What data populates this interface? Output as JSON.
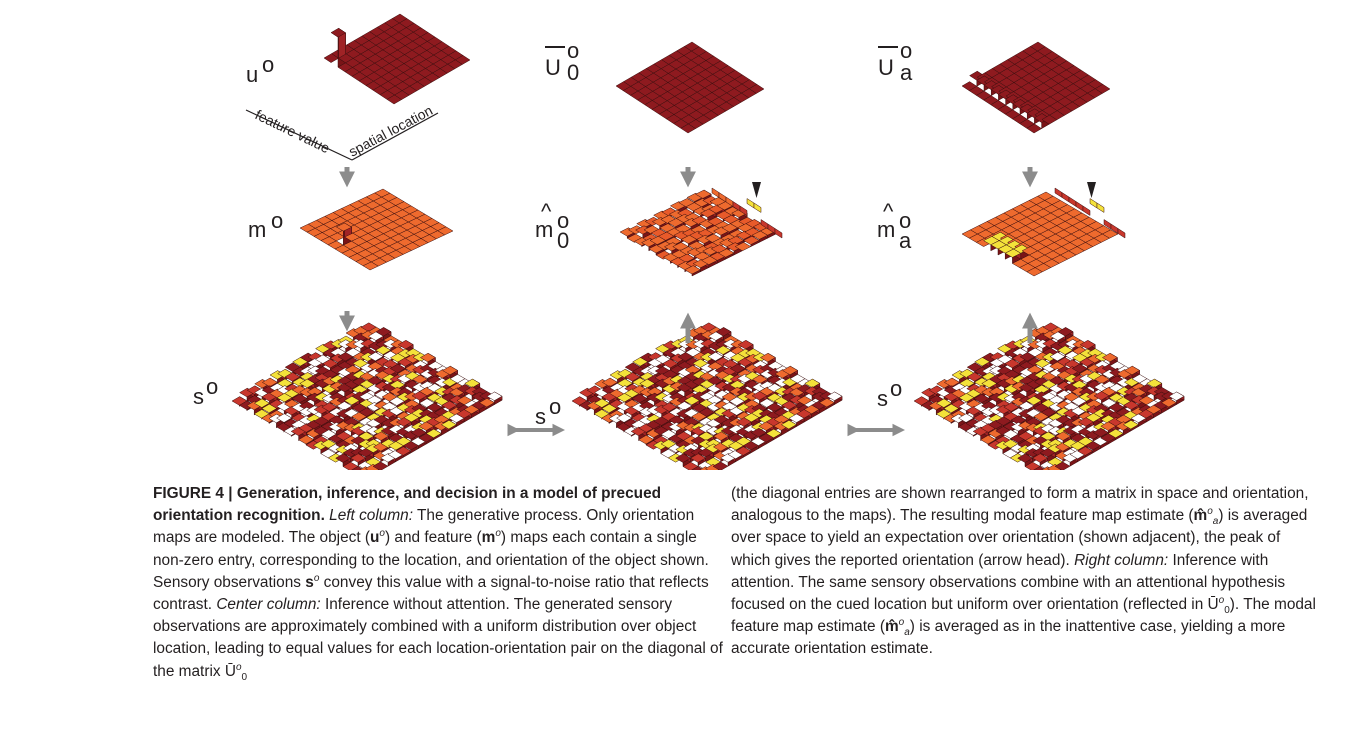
{
  "figure": {
    "symbols": {
      "u": "u",
      "m": "m",
      "s": "s",
      "U_bar": "U",
      "m_hat": "m",
      "o": "o",
      "sub0": "0",
      "suba": "a"
    },
    "axis_labels": {
      "feature": "feature value",
      "spatial": "spatial location"
    },
    "colors": {
      "dark_red": "#8e1a1f",
      "mid_red": "#c8372d",
      "orange": "#ee6a2e",
      "yellow": "#f4e23a",
      "white": "#ffffff",
      "arrow_gray": "#8c8c8c"
    }
  },
  "caption": {
    "title": "FIGURE 4 | Generation, inference, and decision in a model of precued orientation recognition.",
    "left_col_head": "Left column:",
    "left_col_t1": " The generative process. Only orientation maps are modeled. The object (",
    "u_sym": "u",
    "sup_o": "o",
    "left_col_t2": ") and feature (",
    "m_sym": "m",
    "left_col_t3": ") maps each contain a single non-zero entry, corresponding to the location, and orientation of the object shown. Sensory observations ",
    "s_sym": "s",
    "left_col_t4": " convey this value with a signal-to-noise ratio that reflects contrast. ",
    "center_col_head": "Center column:",
    "center_col_t1": " Inference without attention. The generated sensory observations are approximately combined with a uniform distribution over object location, leading to equal values for each location-orientation pair on the diagonal of the matrix ",
    "U0_sym": "Ū",
    "sub_0": "0",
    "right_t1": "(the diagonal entries are shown rearranged to form a matrix in space and orientation, analogous to the maps). The resulting modal feature map estimate (",
    "mhat_sym": "m̂",
    "sub_a": "a",
    "right_t2": ") is averaged over space to yield an expectation over orientation (shown adjacent), the peak of which gives the reported orientation (arrow head). ",
    "right_col_head": "Right column:",
    "right_t3": " Inference with attention. The same sensory observations combine with an attentional hypothesis focused on the cued location but uniform over orientation (reflected in ",
    "right_t4": "). The modal feature map estimate (",
    "right_t5": ") is averaged as in the inattentive case, yielding a more accurate orientation estimate."
  }
}
